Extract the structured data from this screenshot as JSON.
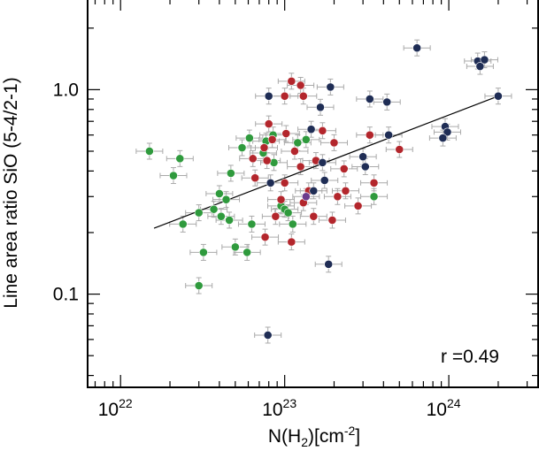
{
  "chart_data": {
    "type": "scatter",
    "xscale": "log",
    "yscale": "log",
    "xlim": [
      6.3e+21,
      3.5e+24
    ],
    "ylim": [
      0.035,
      2.8
    ],
    "xlabel": {
      "prefix": "N(H",
      "sub": "2",
      "mid": ")[cm",
      "sup": "-2",
      "suffix": "]"
    },
    "ylabel": "Line area ratio SiO (5-4/2-1)",
    "xticks": [
      {
        "value": 1e+22,
        "base": "10",
        "exp": "22"
      },
      {
        "value": 1e+23,
        "base": "10",
        "exp": "23"
      },
      {
        "value": 1e+24,
        "base": "10",
        "exp": "24"
      }
    ],
    "yticks": [
      {
        "value": 0.1,
        "label": "0.1"
      },
      {
        "value": 1.0,
        "label": "1.0"
      }
    ],
    "annotation": "r =0.49",
    "fit_line": {
      "x": [
        1.6e+22,
        2e+24
      ],
      "y": [
        0.21,
        0.93
      ]
    },
    "colors": {
      "green": "#2f9a3d",
      "red": "#b3262c",
      "navy": "#1f2d55",
      "purple": "#6b3a8c",
      "errorbar": "#aaaaaa"
    },
    "series": [
      {
        "color_key": "green",
        "points": [
          {
            "x": 1.5e+22,
            "y": 0.5
          },
          {
            "x": 2.1e+22,
            "y": 0.38
          },
          {
            "x": 2.3e+22,
            "y": 0.46
          },
          {
            "x": 2.4e+22,
            "y": 0.22
          },
          {
            "x": 3e+22,
            "y": 0.25
          },
          {
            "x": 3.2e+22,
            "y": 0.16
          },
          {
            "x": 3e+22,
            "y": 0.11
          },
          {
            "x": 3.7e+22,
            "y": 0.26
          },
          {
            "x": 4e+22,
            "y": 0.31
          },
          {
            "x": 4.1e+22,
            "y": 0.24
          },
          {
            "x": 4.4e+22,
            "y": 0.29
          },
          {
            "x": 4.6e+22,
            "y": 0.23
          },
          {
            "x": 4.7e+22,
            "y": 0.39
          },
          {
            "x": 5e+22,
            "y": 0.17
          },
          {
            "x": 5.5e+22,
            "y": 0.52
          },
          {
            "x": 5.9e+22,
            "y": 0.16
          },
          {
            "x": 6.3e+22,
            "y": 0.22
          },
          {
            "x": 6.1e+22,
            "y": 0.58
          },
          {
            "x": 7.4e+22,
            "y": 0.49
          },
          {
            "x": 7.7e+22,
            "y": 0.56
          },
          {
            "x": 8.5e+22,
            "y": 0.6
          },
          {
            "x": 8.6e+22,
            "y": 0.44
          },
          {
            "x": 9.5e+22,
            "y": 0.27
          },
          {
            "x": 1e+23,
            "y": 0.26
          },
          {
            "x": 1.05e+23,
            "y": 0.25
          },
          {
            "x": 1.12e+23,
            "y": 0.22
          },
          {
            "x": 1.2e+23,
            "y": 0.55
          },
          {
            "x": 1.35e+23,
            "y": 0.57
          },
          {
            "x": 3.5e+23,
            "y": 0.3
          }
        ]
      },
      {
        "color_key": "red",
        "points": [
          {
            "x": 1.1e+23,
            "y": 1.1
          },
          {
            "x": 1.25e+23,
            "y": 1.05
          },
          {
            "x": 1.3e+23,
            "y": 0.93
          },
          {
            "x": 1e+23,
            "y": 0.93
          },
          {
            "x": 8e+22,
            "y": 0.68
          },
          {
            "x": 8.4e+22,
            "y": 0.57
          },
          {
            "x": 7.5e+22,
            "y": 0.52
          },
          {
            "x": 7.8e+22,
            "y": 0.45
          },
          {
            "x": 6.4e+22,
            "y": 0.46
          },
          {
            "x": 6.6e+22,
            "y": 0.37
          },
          {
            "x": 1.02e+23,
            "y": 0.61
          },
          {
            "x": 1.15e+23,
            "y": 0.5
          },
          {
            "x": 1.25e+23,
            "y": 0.42
          },
          {
            "x": 1.4e+23,
            "y": 0.32
          },
          {
            "x": 1e+23,
            "y": 0.35
          },
          {
            "x": 9.5e+22,
            "y": 0.29
          },
          {
            "x": 8.8e+22,
            "y": 0.24
          },
          {
            "x": 7.6e+22,
            "y": 0.19
          },
          {
            "x": 1.1e+23,
            "y": 0.18
          },
          {
            "x": 1.3e+23,
            "y": 0.28
          },
          {
            "x": 1.55e+23,
            "y": 0.45
          },
          {
            "x": 1.7e+23,
            "y": 0.63
          },
          {
            "x": 2e+23,
            "y": 0.55
          },
          {
            "x": 2.3e+23,
            "y": 0.41
          },
          {
            "x": 2.1e+23,
            "y": 0.3
          },
          {
            "x": 2.35e+23,
            "y": 0.32
          },
          {
            "x": 1.95e+23,
            "y": 0.23
          },
          {
            "x": 2.8e+23,
            "y": 0.27
          },
          {
            "x": 3.3e+23,
            "y": 0.6
          },
          {
            "x": 3.5e+23,
            "y": 0.35
          },
          {
            "x": 5e+23,
            "y": 0.51
          },
          {
            "x": 1.5e+23,
            "y": 0.24
          }
        ]
      },
      {
        "color_key": "navy",
        "points": [
          {
            "x": 6.4e+23,
            "y": 1.6
          },
          {
            "x": 1.5e+24,
            "y": 1.38
          },
          {
            "x": 1.55e+24,
            "y": 1.3
          },
          {
            "x": 1.65e+24,
            "y": 1.4
          },
          {
            "x": 2e+24,
            "y": 0.93
          },
          {
            "x": 9.5e+23,
            "y": 0.66
          },
          {
            "x": 9.8e+23,
            "y": 0.62
          },
          {
            "x": 9.2e+23,
            "y": 0.58
          },
          {
            "x": 1.9e+23,
            "y": 1.03
          },
          {
            "x": 8e+22,
            "y": 0.93
          },
          {
            "x": 3.3e+23,
            "y": 0.9
          },
          {
            "x": 4.2e+23,
            "y": 0.87
          },
          {
            "x": 4.3e+23,
            "y": 0.6
          },
          {
            "x": 1.65e+23,
            "y": 0.82
          },
          {
            "x": 1.45e+23,
            "y": 0.64
          },
          {
            "x": 3e+23,
            "y": 0.47
          },
          {
            "x": 1.7e+23,
            "y": 0.44
          },
          {
            "x": 1.75e+23,
            "y": 0.36
          },
          {
            "x": 3.1e+23,
            "y": 0.42
          },
          {
            "x": 1.85e+23,
            "y": 0.14
          },
          {
            "x": 7.9e+22,
            "y": 0.063
          },
          {
            "x": 1.5e+23,
            "y": 0.32
          },
          {
            "x": 8.2e+22,
            "y": 0.35
          }
        ]
      },
      {
        "color_key": "purple",
        "points": [
          {
            "x": 1.35e+23,
            "y": 0.3
          }
        ]
      }
    ]
  }
}
